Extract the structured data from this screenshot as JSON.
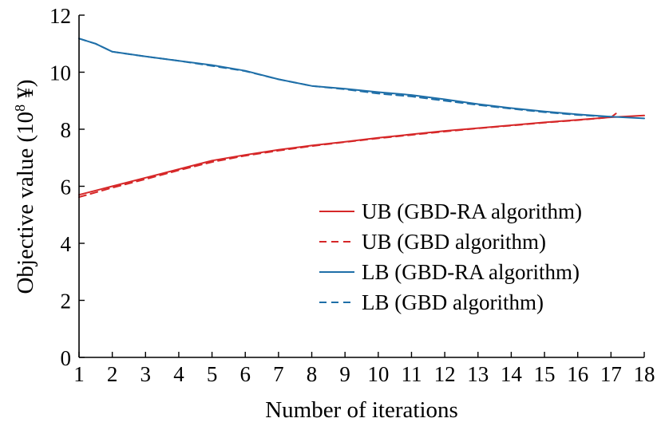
{
  "chart_data": {
    "type": "line",
    "xlabel": "Number of iterations",
    "ylabel_main": "Objective value (10",
    "ylabel_sup": "8",
    "ylabel_tail": " ¥)",
    "xlim": [
      1,
      18
    ],
    "ylim": [
      0,
      12
    ],
    "xticks": [
      1,
      2,
      3,
      4,
      5,
      6,
      7,
      8,
      9,
      10,
      11,
      12,
      13,
      14,
      15,
      16,
      17,
      18
    ],
    "yticks": [
      0,
      2,
      4,
      6,
      8,
      10,
      12
    ],
    "legend_position": "right",
    "series": [
      {
        "name": "UB (GBD-RA algorithm)",
        "color": "#d62728",
        "dash": "solid",
        "x": [
          1,
          2,
          3,
          4,
          5,
          6,
          7,
          8,
          9,
          10,
          11,
          12,
          13,
          14,
          15,
          16,
          17,
          18
        ],
        "y": [
          5.7,
          6.0,
          6.3,
          6.6,
          6.9,
          7.1,
          7.28,
          7.43,
          7.56,
          7.7,
          7.82,
          7.94,
          8.04,
          8.14,
          8.24,
          8.33,
          8.42,
          8.48
        ]
      },
      {
        "name": "UB (GBD algorithm)",
        "color": "#d62728",
        "dash": "dashed",
        "x": [
          1,
          2,
          3,
          4,
          5,
          6,
          7,
          8,
          9,
          10,
          11,
          12,
          13,
          14,
          15,
          16,
          17,
          17.15
        ],
        "y": [
          5.62,
          5.95,
          6.25,
          6.56,
          6.85,
          7.07,
          7.25,
          7.41,
          7.55,
          7.68,
          7.8,
          7.92,
          8.03,
          8.13,
          8.23,
          8.32,
          8.42,
          8.55
        ]
      },
      {
        "name": "LB (GBD-RA algorithm)",
        "color": "#1f6fa8",
        "dash": "solid",
        "x": [
          1,
          1.5,
          2,
          3,
          4,
          5,
          6,
          7,
          8,
          9,
          10,
          11,
          12,
          13,
          14,
          15,
          16,
          17,
          18
        ],
        "y": [
          11.18,
          11.0,
          10.72,
          10.55,
          10.4,
          10.25,
          10.05,
          9.75,
          9.52,
          9.42,
          9.3,
          9.2,
          9.05,
          8.88,
          8.74,
          8.62,
          8.52,
          8.44,
          8.38
        ]
      },
      {
        "name": "LB (GBD algorithm)",
        "color": "#1f6fa8",
        "dash": "dashed",
        "x": [
          1,
          1.5,
          2,
          3,
          4,
          5,
          6,
          7,
          8,
          9,
          10,
          11,
          12,
          13,
          14,
          15,
          16,
          17
        ],
        "y": [
          11.18,
          11.0,
          10.72,
          10.55,
          10.4,
          10.22,
          10.04,
          9.75,
          9.52,
          9.4,
          9.25,
          9.15,
          9.0,
          8.85,
          8.72,
          8.6,
          8.5,
          8.43
        ]
      }
    ]
  }
}
